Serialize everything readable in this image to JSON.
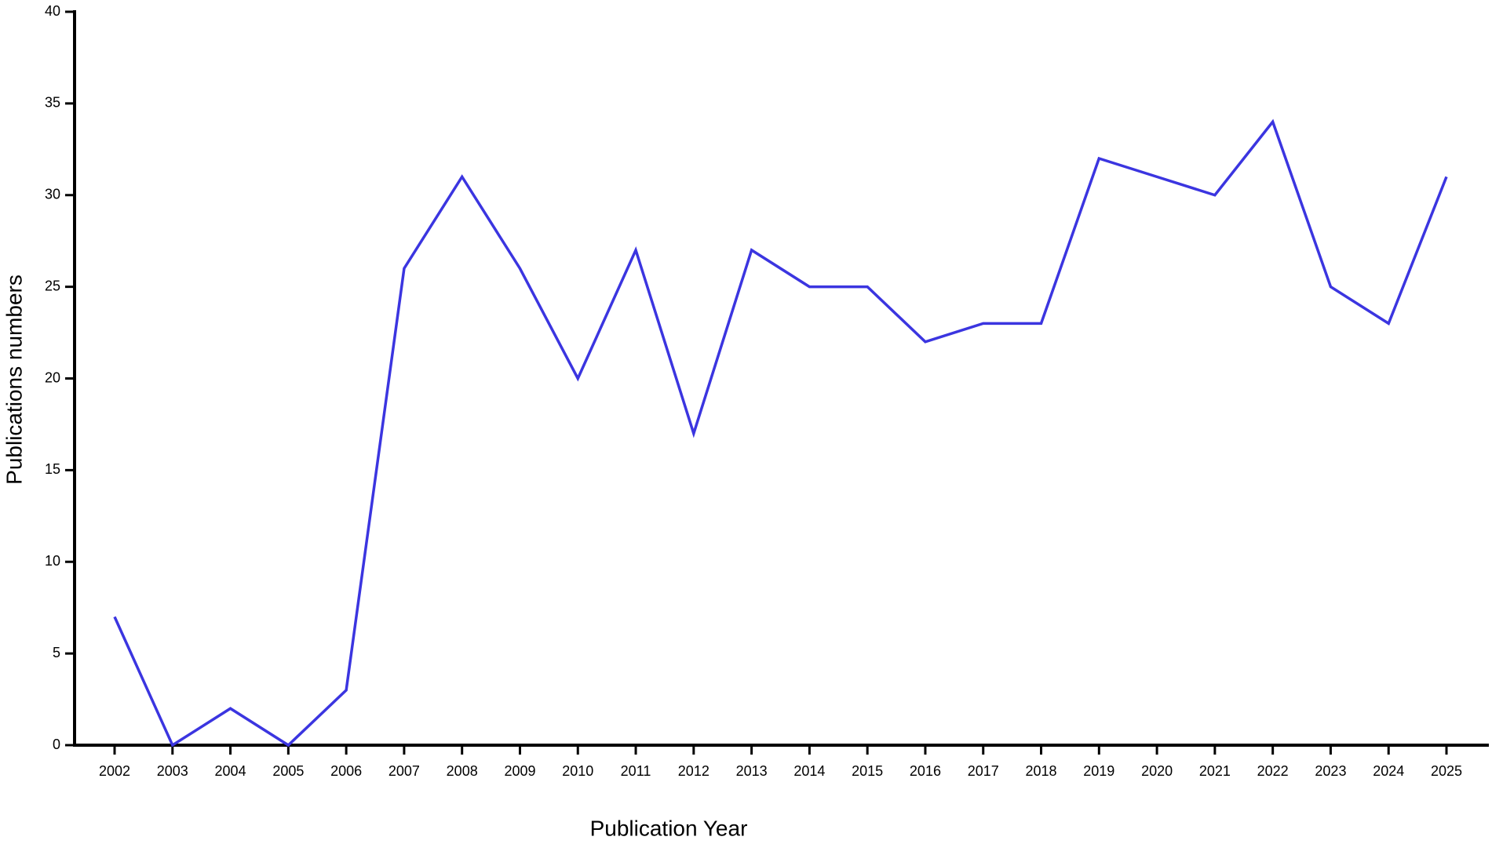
{
  "chart_data": {
    "type": "line",
    "xlabel": "Publication Year",
    "ylabel": "Publications numbers",
    "categories": [
      "2002",
      "2003",
      "2004",
      "2005",
      "2006",
      "2007",
      "2008",
      "2009",
      "2010",
      "2011",
      "2012",
      "2013",
      "2014",
      "2015",
      "2016",
      "2017",
      "2018",
      "2019",
      "2020",
      "2021",
      "2022",
      "2023",
      "2024",
      "2025"
    ],
    "values": [
      7,
      0,
      2,
      0,
      3,
      26,
      31,
      26,
      20,
      27,
      17,
      27,
      25,
      25,
      22,
      23,
      23,
      32,
      31,
      30,
      34,
      25,
      23,
      31
    ],
    "color": "#3b35e0",
    "ylim": [
      0,
      40
    ],
    "yticks": [
      0,
      5,
      10,
      15,
      20,
      25,
      30,
      35,
      40
    ],
    "grid": false
  }
}
